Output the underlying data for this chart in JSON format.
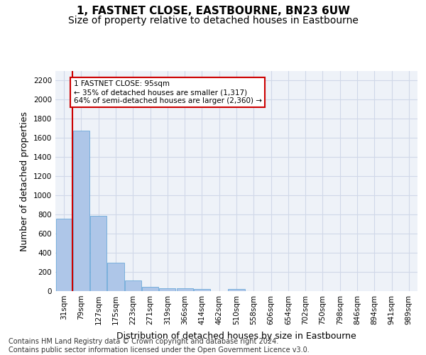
{
  "title": "1, FASTNET CLOSE, EASTBOURNE, BN23 6UW",
  "subtitle": "Size of property relative to detached houses in Eastbourne",
  "xlabel": "Distribution of detached houses by size in Eastbourne",
  "ylabel": "Number of detached properties",
  "footer_line1": "Contains HM Land Registry data © Crown copyright and database right 2024.",
  "footer_line2": "Contains public sector information licensed under the Open Government Licence v3.0.",
  "bar_labels": [
    "31sqm",
    "79sqm",
    "127sqm",
    "175sqm",
    "223sqm",
    "271sqm",
    "319sqm",
    "366sqm",
    "414sqm",
    "462sqm",
    "510sqm",
    "558sqm",
    "606sqm",
    "654sqm",
    "702sqm",
    "750sqm",
    "798sqm",
    "846sqm",
    "894sqm",
    "941sqm",
    "989sqm"
  ],
  "bar_values": [
    760,
    1680,
    790,
    300,
    110,
    45,
    32,
    27,
    22,
    0,
    22,
    0,
    0,
    0,
    0,
    0,
    0,
    0,
    0,
    0,
    0
  ],
  "bar_color": "#aec6e8",
  "bar_edge_color": "#5a9fd4",
  "ylim": [
    0,
    2300
  ],
  "yticks": [
    0,
    200,
    400,
    600,
    800,
    1000,
    1200,
    1400,
    1600,
    1800,
    2000,
    2200
  ],
  "grid_color": "#d0d8e8",
  "bg_color": "#eef2f8",
  "annotation_text": "1 FASTNET CLOSE: 95sqm\n← 35% of detached houses are smaller (1,317)\n64% of semi-detached houses are larger (2,360) →",
  "annotation_box_color": "#ffffff",
  "annotation_box_edge": "#cc0000",
  "vline_color": "#cc0000",
  "title_fontsize": 11,
  "subtitle_fontsize": 10,
  "tick_fontsize": 7.5,
  "label_fontsize": 9,
  "footer_fontsize": 7
}
